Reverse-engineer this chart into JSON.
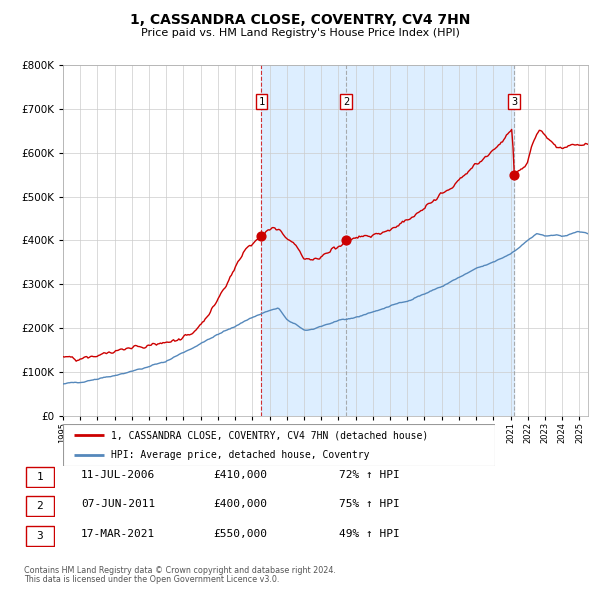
{
  "title": "1, CASSANDRA CLOSE, COVENTRY, CV4 7HN",
  "subtitle": "Price paid vs. HM Land Registry's House Price Index (HPI)",
  "legend_line1": "1, CASSANDRA CLOSE, COVENTRY, CV4 7HN (detached house)",
  "legend_line2": "HPI: Average price, detached house, Coventry",
  "transactions": [
    {
      "num": 1,
      "date": "11-JUL-2006",
      "price": 410000,
      "pct": "72%",
      "dir": "↑",
      "year_x": 2006.53
    },
    {
      "num": 2,
      "date": "07-JUN-2011",
      "price": 400000,
      "pct": "75%",
      "dir": "↑",
      "year_x": 2011.44
    },
    {
      "num": 3,
      "date": "17-MAR-2021",
      "price": 550000,
      "pct": "49%",
      "dir": "↑",
      "year_x": 2021.21
    }
  ],
  "footer_line1": "Contains HM Land Registry data © Crown copyright and database right 2024.",
  "footer_line2": "This data is licensed under the Open Government Licence v3.0.",
  "red_line_color": "#cc0000",
  "blue_line_color": "#5588bb",
  "shaded_color": "#ddeeff",
  "grid_color": "#cccccc",
  "background_color": "#ffffff",
  "ylim": [
    0,
    800000
  ],
  "xlim_start": 1995,
  "xlim_end": 2025.5
}
